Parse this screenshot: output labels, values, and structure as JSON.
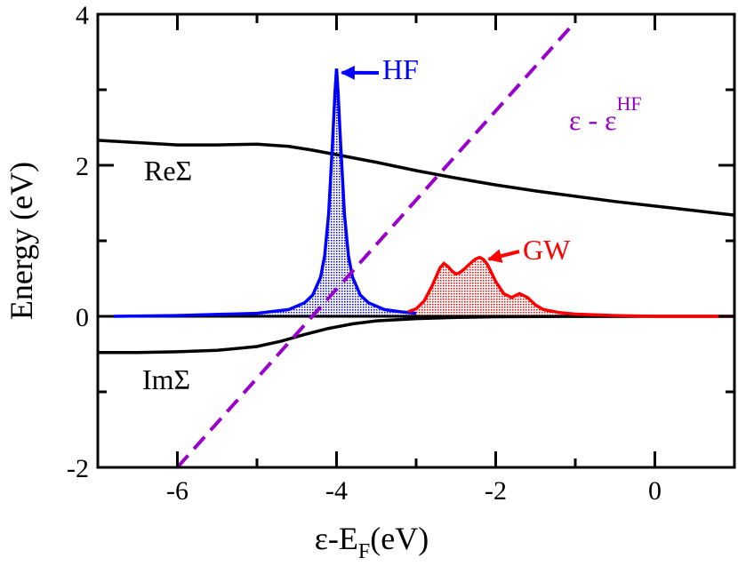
{
  "chart_data": {
    "type": "line",
    "xlabel": {
      "main": "ε-E",
      "sub": "F",
      "unit": "(eV)"
    },
    "ylabel": "Energy (eV)",
    "xlim": [
      -7,
      1
    ],
    "ylim": [
      -2,
      4
    ],
    "xticks": [
      -6,
      -4,
      -2,
      0
    ],
    "xtick_labels": [
      "-6",
      "-4",
      "-2",
      "0"
    ],
    "yticks": [
      -2,
      0,
      2,
      4
    ],
    "ytick_labels": [
      "-2",
      "0",
      "2",
      "4"
    ],
    "colors": {
      "re_sigma": "#000000",
      "im_sigma": "#000000",
      "hf": "#0000ff",
      "gw": "#ff0000",
      "diagonal": "#9900cc"
    },
    "series": [
      {
        "name": "ReΣ",
        "style": "solid",
        "x": [
          -7,
          -6.5,
          -6,
          -5.5,
          -5,
          -4.6,
          -4.3,
          -4,
          -3.5,
          -3,
          -2.5,
          -2,
          -1.5,
          -1,
          -0.5,
          0,
          0.5,
          1
        ],
        "y": [
          2.33,
          2.3,
          2.27,
          2.27,
          2.28,
          2.25,
          2.2,
          2.14,
          2.04,
          1.93,
          1.83,
          1.74,
          1.66,
          1.59,
          1.52,
          1.46,
          1.4,
          1.34
        ]
      },
      {
        "name": "ImΣ",
        "style": "solid",
        "x": [
          -7,
          -6.5,
          -6,
          -5.5,
          -5,
          -4.7,
          -4.4,
          -4.1,
          -3.8,
          -3.5,
          -3.0,
          -2.5,
          -2.0,
          -1.5,
          -1.0,
          0,
          1
        ],
        "y": [
          -0.48,
          -0.48,
          -0.47,
          -0.45,
          -0.4,
          -0.33,
          -0.24,
          -0.16,
          -0.1,
          -0.06,
          -0.03,
          -0.015,
          -0.006,
          -0.003,
          -0.001,
          0,
          0
        ]
      },
      {
        "name": "HF",
        "style": "filled-peak",
        "x": [
          -6.8,
          -6,
          -5,
          -4.6,
          -4.4,
          -4.3,
          -4.2,
          -4.15,
          -4.1,
          -4.05,
          -4.02,
          -4.0,
          -3.98,
          -3.95,
          -3.9,
          -3.85,
          -3.8,
          -3.7,
          -3.6,
          -3.4,
          -3.2,
          -3.0
        ],
        "y": [
          0,
          0.01,
          0.04,
          0.09,
          0.18,
          0.28,
          0.52,
          0.8,
          1.35,
          2.3,
          2.95,
          3.28,
          2.95,
          2.3,
          1.35,
          0.8,
          0.52,
          0.28,
          0.18,
          0.09,
          0.06,
          0.04
        ]
      },
      {
        "name": "GW",
        "style": "filled-peak",
        "x": [
          -3.1,
          -3.0,
          -2.9,
          -2.8,
          -2.7,
          -2.65,
          -2.6,
          -2.55,
          -2.5,
          -2.45,
          -2.4,
          -2.3,
          -2.25,
          -2.2,
          -2.15,
          -2.1,
          -2.0,
          -1.9,
          -1.8,
          -1.7,
          -1.6,
          -1.5,
          -1.4,
          -1.2,
          -1.0,
          -0.5,
          0,
          0.5,
          1
        ],
        "y": [
          0.06,
          0.1,
          0.2,
          0.4,
          0.64,
          0.7,
          0.66,
          0.6,
          0.56,
          0.58,
          0.62,
          0.72,
          0.76,
          0.78,
          0.75,
          0.68,
          0.46,
          0.3,
          0.25,
          0.3,
          0.25,
          0.15,
          0.09,
          0.05,
          0.03,
          0.01,
          0,
          0,
          0
        ]
      },
      {
        "name": "ε - εHF",
        "style": "dashed",
        "x": [
          -6,
          -1
        ],
        "y": [
          -2,
          3.9
        ]
      }
    ],
    "annotations": [
      {
        "text": "HF",
        "color_key": "hf",
        "arrow_to": [
          -4.0,
          3.32
        ]
      },
      {
        "text": "GW",
        "color_key": "gw",
        "arrow_to": [
          -2.2,
          0.78
        ]
      },
      {
        "text": "ε - ε",
        "sup": "HF",
        "color_key": "diagonal"
      },
      {
        "text": "ReΣ",
        "color_key": "re_sigma"
      },
      {
        "text": "ImΣ",
        "color_key": "im_sigma"
      }
    ]
  }
}
